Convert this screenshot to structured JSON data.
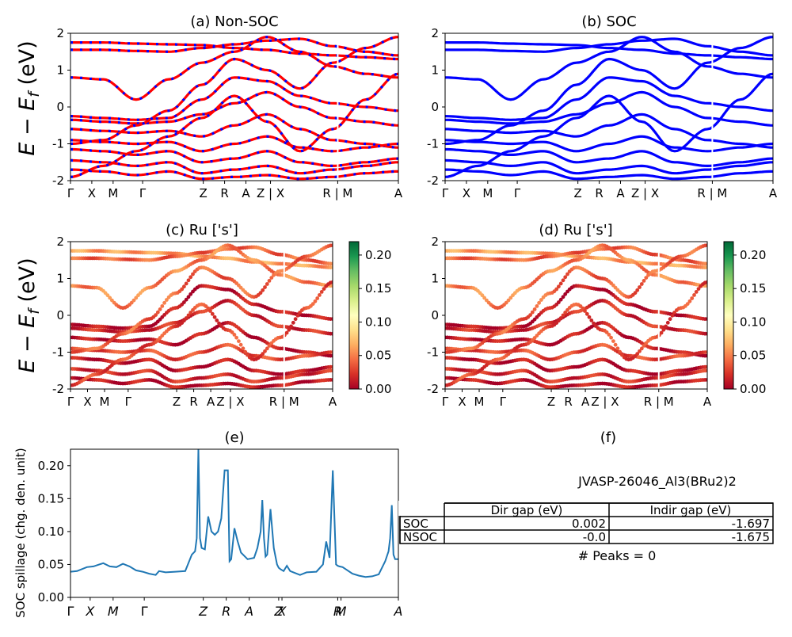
{
  "figure": {
    "ylabel_left": "E − E_f (eV)",
    "ylabel_e": "SOC spillage (chg. den. unit)"
  },
  "colors": {
    "nonsoc_red": "#ff0000",
    "nonsoc_blue": "#0000ff",
    "soc_blue": "#0000ff",
    "spillage_line": "#1f77b4",
    "colormap": [
      "#a50026",
      "#d73027",
      "#f46d43",
      "#fdae61",
      "#fee08b",
      "#ffffbf",
      "#d9ef8b",
      "#a6d96a",
      "#66bd63",
      "#1a9850",
      "#006837"
    ]
  },
  "chart_data": [
    {
      "panel": "a",
      "type": "line",
      "title": "(a) Non-SOC",
      "ylim": [
        -2,
        2
      ],
      "yticks": [
        2,
        1,
        0,
        -1,
        -2
      ],
      "kpath_labels": [
        "Γ",
        "X",
        "M",
        "Γ",
        "Z",
        "R",
        "A",
        "Z | X",
        "R | M",
        "A"
      ],
      "kpath_pos": [
        0,
        0.065,
        0.13,
        0.22,
        0.405,
        0.47,
        0.535,
        0.61,
        0.815,
        1.0
      ],
      "series": [
        {
          "values": [
            1.75,
            1.75,
            1.72,
            1.7,
            1.68,
            1.6,
            1.55,
            1.45,
            1.4,
            1.35,
            1.3
          ]
        },
        {
          "values": [
            1.55,
            1.55,
            1.52,
            1.5,
            1.6,
            1.7,
            1.8,
            1.85,
            1.65,
            1.5,
            1.4
          ]
        },
        {
          "values": [
            0.8,
            0.75,
            0.2,
            0.75,
            1.2,
            1.5,
            1.9,
            1.5,
            1.1,
            0.9,
            0.8
          ]
        },
        {
          "values": [
            -0.25,
            -0.3,
            -0.35,
            -0.3,
            0.2,
            0.8,
            0.7,
            0.3,
            0.1,
            0.0,
            -0.1
          ]
        },
        {
          "values": [
            -0.35,
            -0.4,
            -0.45,
            -0.4,
            -0.2,
            0.1,
            0.4,
            0.0,
            -0.3,
            -0.4,
            -0.5
          ]
        },
        {
          "values": [
            -0.6,
            -0.65,
            -0.7,
            -0.65,
            -0.8,
            -0.5,
            -0.2,
            -0.6,
            -0.9,
            -1.0,
            -1.1
          ]
        },
        {
          "values": [
            -0.9,
            -0.95,
            -1.0,
            -0.95,
            -1.2,
            -1.0,
            -0.8,
            -1.1,
            -1.2,
            -1.1,
            -1.0
          ]
        },
        {
          "values": [
            -1.15,
            -1.2,
            -1.3,
            -1.2,
            -1.5,
            -1.4,
            -1.2,
            -1.5,
            -1.6,
            -1.5,
            -1.4
          ]
        },
        {
          "values": [
            -1.45,
            -1.5,
            -1.6,
            -1.5,
            -1.8,
            -1.7,
            -1.6,
            -1.8,
            -1.7,
            -1.6,
            -1.5
          ]
        },
        {
          "values": [
            -1.7,
            -1.75,
            -1.85,
            -1.75,
            -1.95,
            -1.9,
            -1.85,
            -1.95,
            -1.9,
            -1.8,
            -1.75
          ]
        },
        {
          "values": [
            -1.0,
            -0.9,
            -0.5,
            -0.1,
            0.6,
            1.3,
            1.0,
            0.5,
            1.2,
            1.6,
            1.9
          ]
        },
        {
          "values": [
            -1.9,
            -1.6,
            -1.2,
            -0.8,
            -0.3,
            0.3,
            -0.4,
            -1.2,
            -0.6,
            0.2,
            0.9
          ]
        }
      ]
    },
    {
      "panel": "b",
      "type": "line",
      "title": "(b) SOC",
      "ylim": [
        -2,
        2
      ],
      "yticks": [
        2,
        1,
        0,
        -1,
        -2
      ],
      "kpath_labels": [
        "Γ",
        "X",
        "M",
        "Γ",
        "Z",
        "R",
        "A",
        "Z | X",
        "R | M",
        "A"
      ],
      "kpath_pos": [
        0,
        0.065,
        0.13,
        0.22,
        0.405,
        0.47,
        0.535,
        0.61,
        0.815,
        1.0
      ],
      "series": [
        {
          "values": [
            1.75,
            1.75,
            1.72,
            1.7,
            1.68,
            1.6,
            1.55,
            1.45,
            1.4,
            1.35,
            1.3
          ]
        },
        {
          "values": [
            1.55,
            1.55,
            1.52,
            1.5,
            1.6,
            1.7,
            1.8,
            1.85,
            1.65,
            1.5,
            1.4
          ]
        },
        {
          "values": [
            0.8,
            0.75,
            0.2,
            0.75,
            1.2,
            1.5,
            1.9,
            1.5,
            1.1,
            0.9,
            0.8
          ]
        },
        {
          "values": [
            -0.25,
            -0.3,
            -0.35,
            -0.3,
            0.2,
            0.8,
            0.7,
            0.3,
            0.1,
            0.0,
            -0.1
          ]
        },
        {
          "values": [
            -0.35,
            -0.4,
            -0.45,
            -0.4,
            -0.2,
            0.1,
            0.4,
            0.0,
            -0.3,
            -0.4,
            -0.5
          ]
        },
        {
          "values": [
            -0.6,
            -0.65,
            -0.7,
            -0.65,
            -0.8,
            -0.5,
            -0.2,
            -0.6,
            -0.9,
            -1.0,
            -1.1
          ]
        },
        {
          "values": [
            -0.9,
            -0.95,
            -1.0,
            -0.95,
            -1.2,
            -1.0,
            -0.8,
            -1.1,
            -1.2,
            -1.1,
            -1.0
          ]
        },
        {
          "values": [
            -1.15,
            -1.2,
            -1.3,
            -1.2,
            -1.5,
            -1.4,
            -1.2,
            -1.5,
            -1.6,
            -1.5,
            -1.4
          ]
        },
        {
          "values": [
            -1.45,
            -1.5,
            -1.6,
            -1.5,
            -1.8,
            -1.7,
            -1.6,
            -1.8,
            -1.7,
            -1.6,
            -1.5
          ]
        },
        {
          "values": [
            -1.7,
            -1.75,
            -1.85,
            -1.75,
            -1.95,
            -1.9,
            -1.85,
            -1.95,
            -1.9,
            -1.8,
            -1.75
          ]
        },
        {
          "values": [
            -1.0,
            -0.9,
            -0.5,
            -0.1,
            0.6,
            1.3,
            1.0,
            0.5,
            1.2,
            1.6,
            1.9
          ]
        },
        {
          "values": [
            -1.9,
            -1.6,
            -1.2,
            -0.8,
            -0.3,
            0.3,
            -0.4,
            -1.2,
            -0.6,
            0.2,
            0.9
          ]
        }
      ]
    },
    {
      "panel": "c",
      "type": "scatter",
      "title": "(c)  Ru ['s']",
      "ylim": [
        -2,
        2
      ],
      "yticks": [
        2,
        1,
        0,
        -1,
        -2
      ],
      "colorbar": {
        "range": [
          0,
          0.22
        ],
        "ticks": [
          "0.20",
          "0.15",
          "0.10",
          "0.05",
          "0.00"
        ],
        "tick_values": [
          0.2,
          0.15,
          0.1,
          0.05,
          0.0
        ]
      },
      "kpath_labels": [
        "Γ",
        "X",
        "M",
        "Γ",
        "Z",
        "R",
        "A",
        "Z | X",
        "R | M",
        "A"
      ],
      "kpath_pos": [
        0,
        0.065,
        0.13,
        0.22,
        0.405,
        0.47,
        0.535,
        0.61,
        0.815,
        1.0
      ],
      "series": [
        {
          "values": [
            1.75,
            1.75,
            1.72,
            1.7,
            1.68,
            1.6,
            1.55,
            1.45,
            1.4,
            1.35,
            1.3
          ],
          "weight": 0.06
        },
        {
          "values": [
            1.55,
            1.55,
            1.52,
            1.5,
            1.6,
            1.7,
            1.8,
            1.85,
            1.65,
            1.5,
            1.4
          ],
          "weight": 0.04
        },
        {
          "values": [
            0.8,
            0.75,
            0.2,
            0.75,
            1.2,
            1.5,
            1.9,
            1.5,
            1.1,
            0.9,
            0.8
          ],
          "weight": 0.05
        },
        {
          "values": [
            -0.25,
            -0.3,
            -0.35,
            -0.3,
            0.2,
            0.8,
            0.7,
            0.3,
            0.1,
            0.0,
            -0.1
          ],
          "weight": 0.01
        },
        {
          "values": [
            -0.35,
            -0.4,
            -0.45,
            -0.4,
            -0.2,
            0.1,
            0.4,
            0.0,
            -0.3,
            -0.4,
            -0.5
          ],
          "weight": 0.02
        },
        {
          "values": [
            -0.6,
            -0.65,
            -0.7,
            -0.65,
            -0.8,
            -0.5,
            -0.2,
            -0.6,
            -0.9,
            -1.0,
            -1.1
          ],
          "weight": 0.01
        },
        {
          "values": [
            -0.9,
            -0.95,
            -1.0,
            -0.95,
            -1.2,
            -1.0,
            -0.8,
            -1.1,
            -1.2,
            -1.1,
            -1.0
          ],
          "weight": 0.03
        },
        {
          "values": [
            -1.15,
            -1.2,
            -1.3,
            -1.2,
            -1.5,
            -1.4,
            -1.2,
            -1.5,
            -1.6,
            -1.5,
            -1.4
          ],
          "weight": 0.01
        },
        {
          "values": [
            -1.45,
            -1.5,
            -1.6,
            -1.5,
            -1.8,
            -1.7,
            -1.6,
            -1.8,
            -1.7,
            -1.6,
            -1.5
          ],
          "weight": 0.02
        },
        {
          "values": [
            -1.7,
            -1.75,
            -1.85,
            -1.75,
            -1.95,
            -1.9,
            -1.85,
            -1.95,
            -1.9,
            -1.8,
            -1.75
          ],
          "weight": 0.01
        },
        {
          "values": [
            -1.0,
            -0.9,
            -0.5,
            -0.1,
            0.6,
            1.3,
            1.0,
            0.5,
            1.2,
            1.6,
            1.9
          ],
          "weight": 0.04
        },
        {
          "values": [
            -1.9,
            -1.6,
            -1.2,
            -0.8,
            -0.3,
            0.3,
            -0.4,
            -1.2,
            -0.6,
            0.2,
            0.9
          ],
          "weight": 0.03
        }
      ]
    },
    {
      "panel": "d",
      "type": "scatter",
      "title": "(d) Ru ['s']",
      "ylim": [
        -2,
        2
      ],
      "yticks": [
        2,
        1,
        0,
        -1,
        -2
      ],
      "colorbar": {
        "range": [
          0,
          0.22
        ],
        "ticks": [
          "0.20",
          "0.15",
          "0.10",
          "0.05",
          "0.00"
        ],
        "tick_values": [
          0.2,
          0.15,
          0.1,
          0.05,
          0.0
        ]
      },
      "kpath_labels": [
        "Γ",
        "X",
        "M",
        "Γ",
        "Z",
        "R",
        "A",
        "Z | X",
        "R | M",
        "A"
      ],
      "kpath_pos": [
        0,
        0.065,
        0.13,
        0.22,
        0.405,
        0.47,
        0.535,
        0.61,
        0.815,
        1.0
      ],
      "series": [
        {
          "values": [
            1.75,
            1.75,
            1.72,
            1.7,
            1.68,
            1.6,
            1.55,
            1.45,
            1.4,
            1.35,
            1.3
          ],
          "weight": 0.06
        },
        {
          "values": [
            1.55,
            1.55,
            1.52,
            1.5,
            1.6,
            1.7,
            1.8,
            1.85,
            1.65,
            1.5,
            1.4
          ],
          "weight": 0.04
        },
        {
          "values": [
            0.8,
            0.75,
            0.2,
            0.75,
            1.2,
            1.5,
            1.9,
            1.5,
            1.1,
            0.9,
            0.8
          ],
          "weight": 0.05
        },
        {
          "values": [
            -0.25,
            -0.3,
            -0.35,
            -0.3,
            0.2,
            0.8,
            0.7,
            0.3,
            0.1,
            0.0,
            -0.1
          ],
          "weight": 0.01
        },
        {
          "values": [
            -0.35,
            -0.4,
            -0.45,
            -0.4,
            -0.2,
            0.1,
            0.4,
            0.0,
            -0.3,
            -0.4,
            -0.5
          ],
          "weight": 0.02
        },
        {
          "values": [
            -0.6,
            -0.65,
            -0.7,
            -0.65,
            -0.8,
            -0.5,
            -0.2,
            -0.6,
            -0.9,
            -1.0,
            -1.1
          ],
          "weight": 0.01
        },
        {
          "values": [
            -0.9,
            -0.95,
            -1.0,
            -0.95,
            -1.2,
            -1.0,
            -0.8,
            -1.1,
            -1.2,
            -1.1,
            -1.0
          ],
          "weight": 0.03
        },
        {
          "values": [
            -1.15,
            -1.2,
            -1.3,
            -1.2,
            -1.5,
            -1.4,
            -1.2,
            -1.5,
            -1.6,
            -1.5,
            -1.4
          ],
          "weight": 0.01
        },
        {
          "values": [
            -1.45,
            -1.5,
            -1.6,
            -1.5,
            -1.8,
            -1.7,
            -1.6,
            -1.8,
            -1.7,
            -1.6,
            -1.5
          ],
          "weight": 0.02
        },
        {
          "values": [
            -1.7,
            -1.75,
            -1.85,
            -1.75,
            -1.95,
            -1.9,
            -1.85,
            -1.95,
            -1.9,
            -1.8,
            -1.75
          ],
          "weight": 0.01
        },
        {
          "values": [
            -1.0,
            -0.9,
            -0.5,
            -0.1,
            0.6,
            1.3,
            1.0,
            0.5,
            1.2,
            1.6,
            1.9
          ],
          "weight": 0.04
        },
        {
          "values": [
            -1.9,
            -1.6,
            -1.2,
            -0.8,
            -0.3,
            0.3,
            -0.4,
            -1.2,
            -0.6,
            0.2,
            0.9
          ],
          "weight": 0.03
        }
      ]
    },
    {
      "panel": "e",
      "type": "line",
      "title": "(e)",
      "ylabel": "SOC spillage (chg. den. unit)",
      "ylim": [
        0,
        0.225
      ],
      "yticks": [
        0.2,
        0.15,
        0.1,
        0.05,
        0.0
      ],
      "ytick_labels": [
        "0.20",
        "0.15",
        "0.10",
        "0.05",
        "0.00"
      ],
      "kpath_labels": [
        "Γ",
        "X",
        "M",
        "Γ",
        "Z",
        "R",
        "A",
        "Z",
        "X",
        "R",
        "M",
        "A"
      ],
      "kpath_pos": [
        0,
        0.06,
        0.13,
        0.225,
        0.405,
        0.475,
        0.545,
        0.635,
        0.645,
        0.815,
        0.825,
        1.0
      ],
      "x": [
        0,
        0.02,
        0.05,
        0.07,
        0.1,
        0.12,
        0.14,
        0.16,
        0.18,
        0.2,
        0.22,
        0.24,
        0.26,
        0.27,
        0.29,
        0.32,
        0.35,
        0.37,
        0.38,
        0.385,
        0.39,
        0.395,
        0.4,
        0.41,
        0.42,
        0.43,
        0.44,
        0.45,
        0.46,
        0.47,
        0.48,
        0.485,
        0.49,
        0.5,
        0.51,
        0.52,
        0.54,
        0.56,
        0.57,
        0.58,
        0.585,
        0.59,
        0.595,
        0.6,
        0.61,
        0.62,
        0.63,
        0.635,
        0.64,
        0.65,
        0.66,
        0.67,
        0.68,
        0.7,
        0.72,
        0.75,
        0.77,
        0.78,
        0.79,
        0.8,
        0.81,
        0.815,
        0.82,
        0.83,
        0.86,
        0.88,
        0.9,
        0.92,
        0.94,
        0.96,
        0.97,
        0.975,
        0.98,
        0.985,
        0.99,
        1.0
      ],
      "values": [
        0.039,
        0.04,
        0.046,
        0.047,
        0.052,
        0.047,
        0.046,
        0.051,
        0.047,
        0.041,
        0.039,
        0.036,
        0.034,
        0.04,
        0.038,
        0.039,
        0.04,
        0.065,
        0.07,
        0.09,
        0.225,
        0.09,
        0.075,
        0.073,
        0.123,
        0.1,
        0.095,
        0.1,
        0.12,
        0.193,
        0.193,
        0.055,
        0.058,
        0.105,
        0.085,
        0.068,
        0.058,
        0.06,
        0.075,
        0.1,
        0.148,
        0.09,
        0.062,
        0.065,
        0.134,
        0.075,
        0.05,
        0.045,
        0.043,
        0.04,
        0.048,
        0.04,
        0.038,
        0.034,
        0.038,
        0.039,
        0.05,
        0.085,
        0.06,
        0.193,
        0.05,
        0.048,
        0.047,
        0.046,
        0.036,
        0.033,
        0.031,
        0.032,
        0.035,
        0.055,
        0.07,
        0.09,
        0.14,
        0.065,
        0.058,
        0.058
      ]
    }
  ],
  "panel_f": {
    "title": "(f)",
    "compound": "JVASP-26046_Al3(BRu2)2",
    "headers": [
      "",
      "Dir gap (eV)",
      "Indir gap (eV)"
    ],
    "rows": [
      [
        "SOC",
        "0.002",
        "-1.697"
      ],
      [
        "NSOC",
        "-0.0",
        "-1.675"
      ]
    ],
    "peaks": "# Peaks = 0"
  }
}
